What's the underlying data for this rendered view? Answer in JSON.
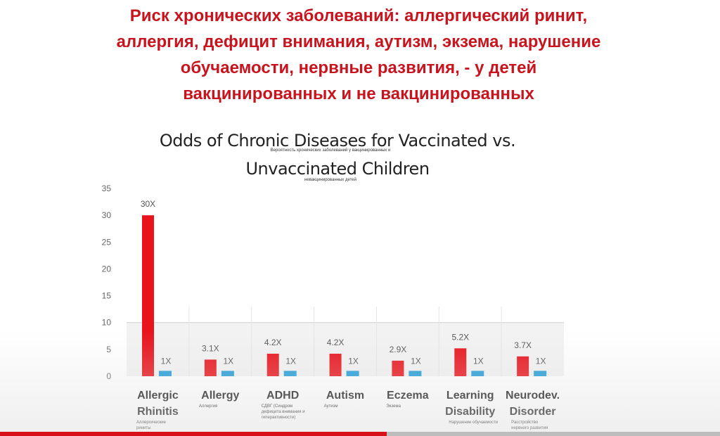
{
  "headline": [
    "Риск хронических заболеваний: аллергический ринит,",
    "аллергия, дефицит внимания, аутизм, экзема, нарушение",
    "обучаемости, нервные развития, - у детей",
    "вакцинированных и не вакцинированных"
  ],
  "colors": {
    "headline": "#c8141e",
    "vaccinated": "#e8131b",
    "unvaccinated": "#1f9bd7"
  },
  "chart_data": {
    "type": "bar",
    "title": "Odds of Chronic Diseases for Vaccinated vs. Unvaccinated Children",
    "title_lines": [
      "Odds of Chronic Diseases for Vaccinated vs.",
      "Unvaccinated Children"
    ],
    "subtitle_lines": [
      "Вероятность хронических заболеваний у вакцинированных и",
      "невакцинированных детей"
    ],
    "categories": [
      {
        "label": [
          "Allergic",
          "Rhinitis"
        ],
        "translation": [
          "Аллергические",
          "риниты"
        ]
      },
      {
        "label": [
          "Allergy"
        ],
        "translation": [
          "Аллергия"
        ]
      },
      {
        "label": [
          "ADHD"
        ],
        "translation": [
          "СДВГ (Синдром",
          "дефицита внимания и",
          "гиперактивности)"
        ]
      },
      {
        "label": [
          "Autism"
        ],
        "translation": [
          "Аутизм"
        ]
      },
      {
        "label": [
          "Eczema"
        ],
        "translation": [
          "Экзема"
        ]
      },
      {
        "label": [
          "Learning",
          "Disability"
        ],
        "translation": [
          "Нарушение обучаемости"
        ]
      },
      {
        "label": [
          "Neurodev.",
          "Disorder"
        ],
        "translation": [
          "Расстройство",
          "нервного развития"
        ]
      }
    ],
    "series": [
      {
        "values": [
          30,
          3.1,
          4.2,
          4.2,
          2.9,
          5.2,
          3.7
        ],
        "labels": [
          "30X",
          "3.1X",
          "4.2X",
          "4.2X",
          "2.9X",
          "5.2X",
          "3.7X"
        ]
      },
      {
        "values": [
          1,
          1,
          1,
          1,
          1,
          1,
          1
        ],
        "labels": [
          "1X",
          "1X",
          "1X",
          "1X",
          "1X",
          "1X",
          "1X"
        ]
      }
    ],
    "yticks": [
      0,
      5,
      10,
      15,
      20,
      25,
      30,
      35
    ],
    "ylim": [
      0,
      35
    ],
    "grid": "horizontal at 10"
  }
}
